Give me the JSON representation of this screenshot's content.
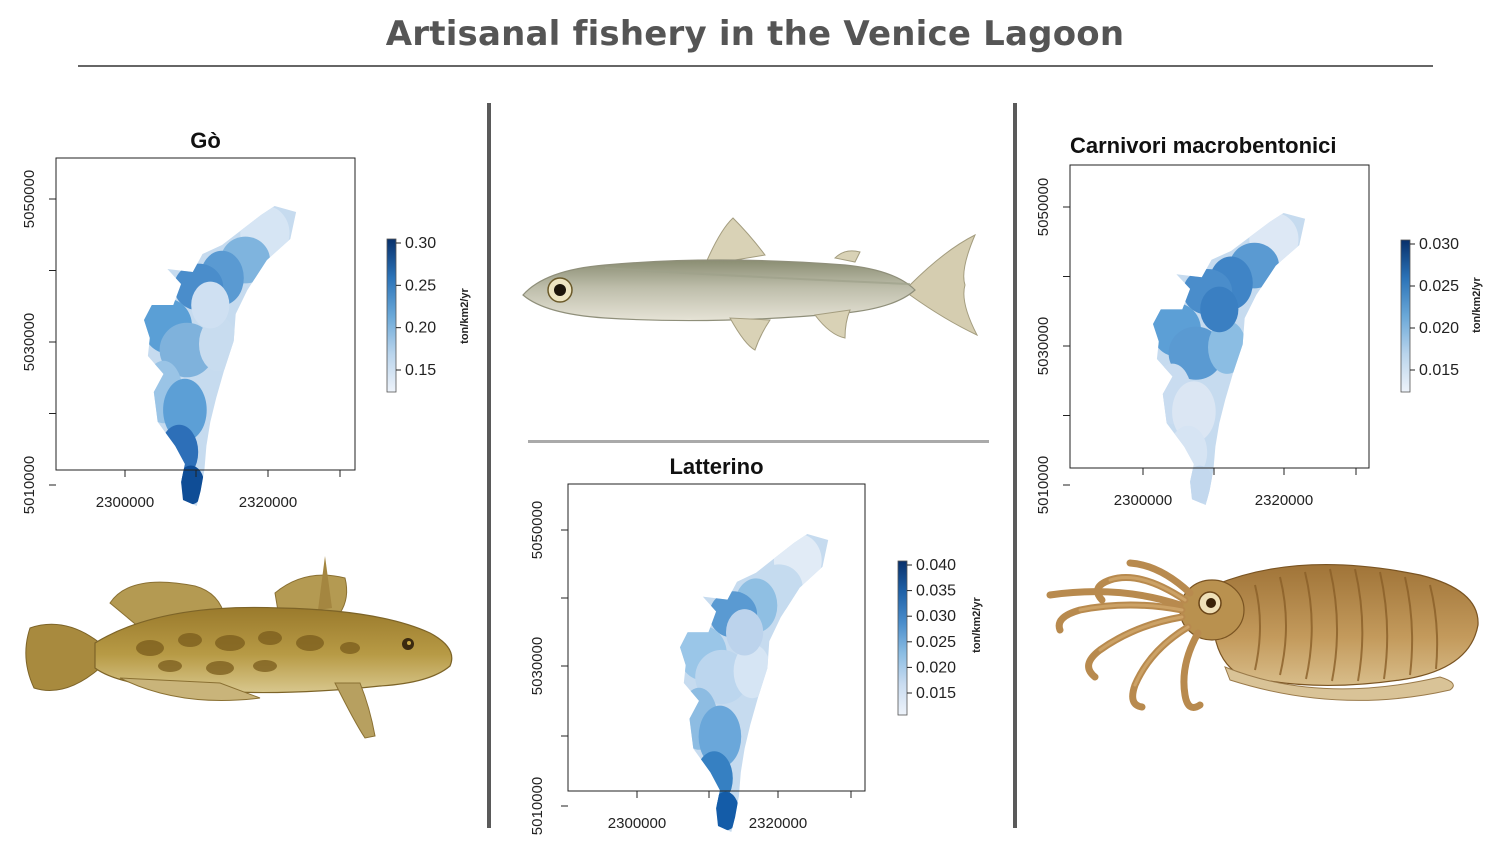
{
  "slide": {
    "title": "Artisanal fishery in the Venice Lagoon"
  },
  "maps": [
    {
      "id": "go",
      "title": "Gò",
      "x_ticks": [
        "2300000",
        "2320000"
      ],
      "y_ticks": [
        "5050000",
        "5030000",
        "5010000"
      ],
      "legend": {
        "unit": "ton/km2/yr",
        "labels": [
          "0.30",
          "0.25",
          "0.20",
          "0.15"
        ]
      }
    },
    {
      "id": "latterino",
      "title": "Latterino",
      "x_ticks": [
        "2300000",
        "2320000"
      ],
      "y_ticks": [
        "5050000",
        "5030000",
        "5010000"
      ],
      "legend": {
        "unit": "ton/km2/yr",
        "labels": [
          "0.040",
          "0.035",
          "0.030",
          "0.025",
          "0.020",
          "0.015"
        ]
      }
    },
    {
      "id": "carnivori",
      "title": "Carnivori macrobentonici",
      "x_ticks": [
        "2300000",
        "2320000"
      ],
      "y_ticks": [
        "5050000",
        "5030000",
        "5010000"
      ],
      "legend": {
        "unit": "ton/km2/yr",
        "labels": [
          "0.030",
          "0.025",
          "0.020",
          "0.015"
        ]
      }
    }
  ],
  "illustrations": [
    "goby-illustration",
    "sand-smelt-illustration",
    "cuttlefish-illustration"
  ],
  "colors": {
    "title": "#555555",
    "blue_dark": "#08306b",
    "blue_mid": "#4a90c8",
    "blue_light": "#dbe6f3"
  }
}
